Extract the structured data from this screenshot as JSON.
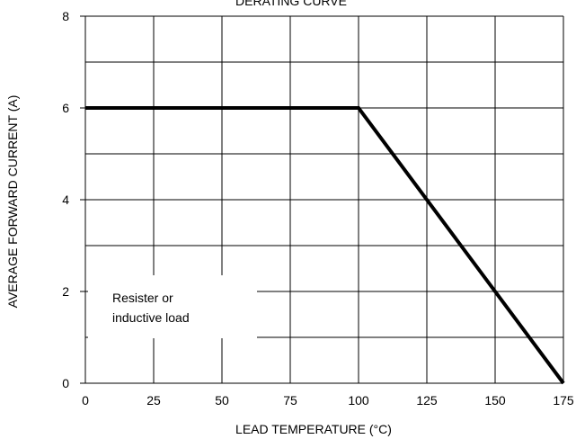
{
  "chart_data": {
    "type": "line",
    "title": "DERATING CURVE",
    "xlabel": "LEAD TEMPERATURE (°C)",
    "ylabel": "AVERAGE FORWARD CURRENT (A)",
    "xlim": [
      0,
      175
    ],
    "ylim": [
      0,
      8
    ],
    "x_ticks": [
      0,
      25,
      50,
      75,
      100,
      125,
      150,
      175
    ],
    "y_ticks": [
      0,
      2,
      4,
      6,
      8
    ],
    "grid": true,
    "series": [
      {
        "x": [
          0,
          100,
          175
        ],
        "y": [
          6,
          6,
          0
        ]
      }
    ],
    "annotation": [
      "Resister or",
      "inductive load"
    ],
    "colors": {
      "line": "#000000",
      "grid": "#000000"
    }
  }
}
